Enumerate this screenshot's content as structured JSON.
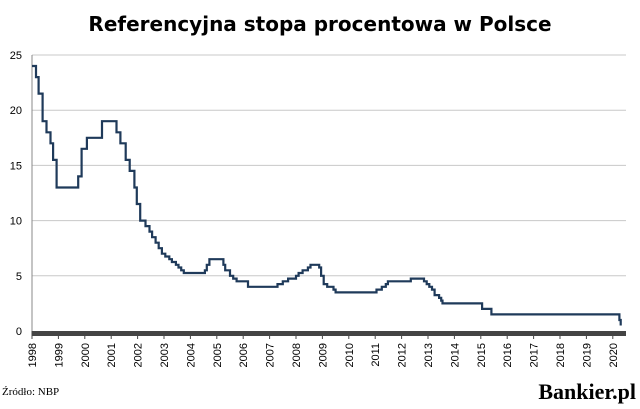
{
  "chart_data": {
    "type": "line",
    "title": "Referencyjna stopa procentowa w Polsce",
    "xlabel": "",
    "ylabel": "",
    "xlim": [
      1998,
      2020.5
    ],
    "ylim": [
      0,
      25
    ],
    "y_ticks": [
      0,
      5,
      10,
      15,
      20,
      25
    ],
    "x_tick_labels": [
      "1998",
      "1999",
      "2000",
      "2001",
      "2002",
      "2003",
      "2004",
      "2005",
      "2006",
      "2007",
      "2008",
      "2009",
      "2010",
      "2011",
      "2012",
      "2013",
      "2014",
      "2015",
      "2016",
      "2017",
      "2018",
      "2019",
      "2020"
    ],
    "grid": true,
    "legend": "none",
    "line_color": "#1f3a5a",
    "step": true,
    "series": [
      {
        "points": [
          [
            1998.0,
            24.0
          ],
          [
            1998.15,
            23.0
          ],
          [
            1998.25,
            21.5
          ],
          [
            1998.4,
            19.0
          ],
          [
            1998.55,
            18.0
          ],
          [
            1998.7,
            17.0
          ],
          [
            1998.8,
            15.5
          ],
          [
            1998.93,
            13.0
          ],
          [
            1999.75,
            14.0
          ],
          [
            1999.88,
            16.5
          ],
          [
            2000.08,
            17.5
          ],
          [
            2000.65,
            19.0
          ],
          [
            2001.2,
            18.0
          ],
          [
            2001.35,
            17.0
          ],
          [
            2001.55,
            15.5
          ],
          [
            2001.7,
            14.5
          ],
          [
            2001.88,
            13.0
          ],
          [
            2001.97,
            11.5
          ],
          [
            2002.1,
            10.0
          ],
          [
            2002.3,
            9.5
          ],
          [
            2002.45,
            9.0
          ],
          [
            2002.55,
            8.5
          ],
          [
            2002.68,
            8.0
          ],
          [
            2002.8,
            7.5
          ],
          [
            2002.92,
            7.0
          ],
          [
            2003.05,
            6.75
          ],
          [
            2003.2,
            6.5
          ],
          [
            2003.3,
            6.25
          ],
          [
            2003.45,
            6.0
          ],
          [
            2003.55,
            5.75
          ],
          [
            2003.65,
            5.5
          ],
          [
            2003.75,
            5.25
          ],
          [
            2004.55,
            5.5
          ],
          [
            2004.62,
            6.0
          ],
          [
            2004.72,
            6.5
          ],
          [
            2005.25,
            6.0
          ],
          [
            2005.32,
            5.5
          ],
          [
            2005.5,
            5.0
          ],
          [
            2005.62,
            4.75
          ],
          [
            2005.75,
            4.5
          ],
          [
            2006.18,
            4.0
          ],
          [
            2007.3,
            4.25
          ],
          [
            2007.5,
            4.5
          ],
          [
            2007.7,
            4.75
          ],
          [
            2008.0,
            5.0
          ],
          [
            2008.1,
            5.25
          ],
          [
            2008.25,
            5.5
          ],
          [
            2008.45,
            5.75
          ],
          [
            2008.55,
            6.0
          ],
          [
            2008.88,
            5.75
          ],
          [
            2008.95,
            5.0
          ],
          [
            2009.05,
            4.25
          ],
          [
            2009.18,
            4.0
          ],
          [
            2009.42,
            3.75
          ],
          [
            2009.5,
            3.5
          ],
          [
            2011.05,
            3.75
          ],
          [
            2011.25,
            4.0
          ],
          [
            2011.4,
            4.25
          ],
          [
            2011.48,
            4.5
          ],
          [
            2012.35,
            4.75
          ],
          [
            2012.85,
            4.5
          ],
          [
            2012.95,
            4.25
          ],
          [
            2013.05,
            4.0
          ],
          [
            2013.15,
            3.75
          ],
          [
            2013.25,
            3.25
          ],
          [
            2013.42,
            3.0
          ],
          [
            2013.5,
            2.75
          ],
          [
            2013.55,
            2.5
          ],
          [
            2015.05,
            2.0
          ],
          [
            2015.4,
            1.5
          ],
          [
            2020.2,
            1.5
          ],
          [
            2020.25,
            1.0
          ],
          [
            2020.3,
            0.5
          ]
        ]
      }
    ]
  },
  "footer": {
    "source": "Źródło: NBP",
    "brand": "Bankier.pl"
  }
}
